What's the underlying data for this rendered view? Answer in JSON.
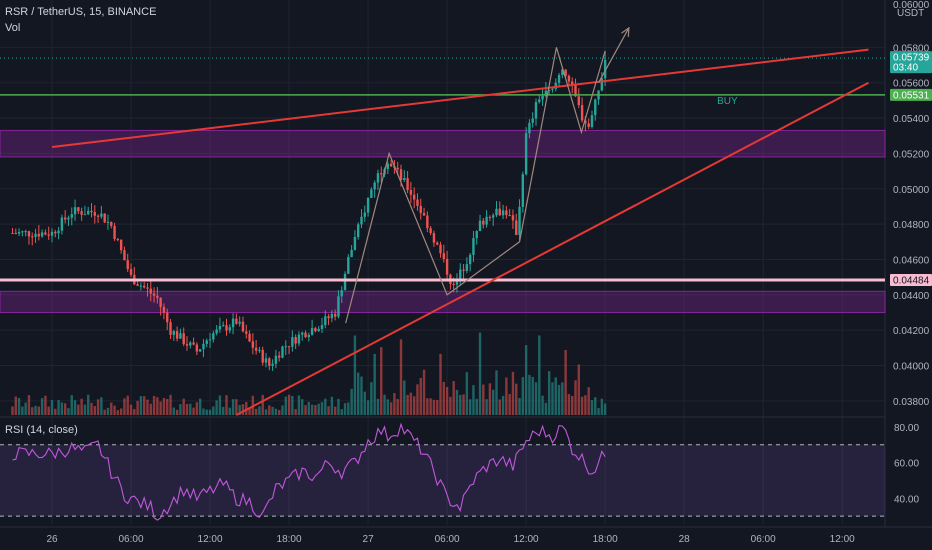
{
  "header": {
    "symbol_line": "RSR / TetherUS, 15, BINANCE",
    "vol_label": "Vol",
    "rsi_label": "RSI (14, close)",
    "currency": "USDT",
    "top_price": "0.06000"
  },
  "chart_data": {
    "type": "candlestick",
    "price_axis": {
      "ylim": [
        0.0372,
        0.06
      ],
      "ticks": [
        "0.05800",
        "0.05600",
        "0.05400",
        "0.05200",
        "0.05000",
        "0.04800",
        "0.04600",
        "0.04400",
        "0.04200",
        "0.04000",
        "0.03800"
      ]
    },
    "rsi_axis": {
      "ylim": [
        25,
        85
      ],
      "ticks": [
        "80.00",
        "60.00",
        "40.00"
      ],
      "bands": [
        30,
        70
      ]
    },
    "time_axis": {
      "labels": [
        "26",
        "06:00",
        "12:00",
        "18:00",
        "27",
        "06:00",
        "12:00",
        "18:00",
        "28",
        "06:00",
        "12:00"
      ],
      "start_hour": 0,
      "end_hour": 62
    },
    "horizontal_lines": [
      {
        "name": "green-support",
        "price": 0.05531,
        "color": "#4caf50"
      },
      {
        "name": "pink-support",
        "price": 0.04484,
        "color": "#f8bbd0"
      },
      {
        "name": "last-price-dotted",
        "price": 0.05739,
        "color": "#26a69a"
      }
    ],
    "zones": [
      {
        "name": "upper-zone",
        "from": 0.0518,
        "to": 0.0533,
        "color": "#9c27b0"
      },
      {
        "name": "lower-zone",
        "from": 0.043,
        "to": 0.0442,
        "color": "#9c27b0"
      }
    ],
    "trendlines": [
      {
        "name": "upper-trendline",
        "from": [
          0,
          0.05236
        ],
        "to": [
          62,
          0.05787
        ],
        "color": "#e53935"
      },
      {
        "name": "lower-trendline",
        "from": [
          14,
          0.0372
        ],
        "to": [
          62,
          0.056
        ],
        "color": "#e53935"
      }
    ],
    "path_projection": [
      [
        22.3,
        0.0424
      ],
      [
        25.6,
        0.052
      ],
      [
        30.0,
        0.044
      ],
      [
        35.5,
        0.047
      ],
      [
        38.3,
        0.058
      ],
      [
        40.2,
        0.0532
      ],
      [
        42.0,
        0.0578
      ]
    ],
    "arrow_projection": [
      [
        41.5,
        0.056
      ],
      [
        43.8,
        0.0591
      ]
    ],
    "annotation": {
      "text": "BUY",
      "hour": 50.5,
      "price": 0.05535,
      "color": "#26a69a"
    },
    "price_labels": [
      {
        "text": "0.05739",
        "sub": "03:40",
        "price": 0.05739,
        "bg": "#26a69a"
      },
      {
        "text": "0.05531",
        "price": 0.05531,
        "bg": "#4caf50"
      },
      {
        "text": "0.04484",
        "price": 0.04484,
        "bg": "#f8bbd0",
        "fg": "#131722"
      }
    ],
    "price_anchors": [
      [
        0,
        0.0475
      ],
      [
        1.5,
        0.0487
      ],
      [
        3.5,
        0.0487
      ],
      [
        4.5,
        0.0479
      ],
      [
        6,
        0.045
      ],
      [
        8,
        0.0438
      ],
      [
        9,
        0.042
      ],
      [
        11,
        0.0408
      ],
      [
        12,
        0.0417
      ],
      [
        14,
        0.0425
      ],
      [
        15,
        0.0413
      ],
      [
        16.5,
        0.04
      ],
      [
        17.5,
        0.041
      ],
      [
        19,
        0.0418
      ],
      [
        20.5,
        0.0424
      ],
      [
        21.5,
        0.043
      ],
      [
        22.5,
        0.046
      ],
      [
        23.5,
        0.0483
      ],
      [
        24.5,
        0.0505
      ],
      [
        25.5,
        0.0517
      ],
      [
        26.5,
        0.0506
      ],
      [
        27.5,
        0.0495
      ],
      [
        28.5,
        0.048
      ],
      [
        29.5,
        0.0463
      ],
      [
        30.5,
        0.0444
      ],
      [
        31.5,
        0.046
      ],
      [
        32.5,
        0.048
      ],
      [
        33.5,
        0.0488
      ],
      [
        34.5,
        0.0487
      ],
      [
        35.3,
        0.0475
      ],
      [
        36,
        0.053
      ],
      [
        37,
        0.0552
      ],
      [
        38,
        0.0555
      ],
      [
        38.8,
        0.057
      ],
      [
        39.5,
        0.0556
      ],
      [
        40.3,
        0.054
      ],
      [
        40.8,
        0.0535
      ],
      [
        41.5,
        0.0555
      ],
      [
        42,
        0.0573
      ]
    ],
    "rsi_anchors": [
      [
        0,
        65
      ],
      [
        1.5,
        68
      ],
      [
        2.5,
        66
      ],
      [
        3.5,
        70
      ],
      [
        4.5,
        55
      ],
      [
        5.5,
        42
      ],
      [
        6.5,
        38
      ],
      [
        7.5,
        35
      ],
      [
        8,
        30
      ],
      [
        9,
        37
      ],
      [
        10,
        45
      ],
      [
        11,
        40
      ],
      [
        12,
        44
      ],
      [
        13,
        48
      ],
      [
        14,
        40
      ],
      [
        15,
        38
      ],
      [
        16,
        30
      ],
      [
        17,
        45
      ],
      [
        18,
        50
      ],
      [
        19,
        55
      ],
      [
        20,
        52
      ],
      [
        21,
        60
      ],
      [
        22,
        55
      ],
      [
        23,
        60
      ],
      [
        24,
        72
      ],
      [
        25,
        78
      ],
      [
        25.5,
        75
      ],
      [
        26.5,
        80
      ],
      [
        27,
        76
      ],
      [
        28,
        68
      ],
      [
        29,
        55
      ],
      [
        30,
        40
      ],
      [
        31,
        35
      ],
      [
        32,
        50
      ],
      [
        33,
        58
      ],
      [
        34,
        62
      ],
      [
        35,
        58
      ],
      [
        36,
        72
      ],
      [
        37,
        78
      ],
      [
        38,
        75
      ],
      [
        38.8,
        80
      ],
      [
        39.5,
        68
      ],
      [
        40.5,
        60
      ],
      [
        41,
        55
      ],
      [
        41.5,
        60
      ],
      [
        42,
        65
      ]
    ],
    "volume_spikes": [
      [
        23,
        0.82
      ],
      [
        24.5,
        0.63
      ],
      [
        25,
        0.7
      ],
      [
        26.5,
        0.78
      ],
      [
        29.5,
        0.63
      ],
      [
        32.5,
        0.85
      ],
      [
        36,
        0.72
      ],
      [
        37,
        0.82
      ],
      [
        39,
        0.67
      ],
      [
        40,
        0.52
      ]
    ]
  }
}
